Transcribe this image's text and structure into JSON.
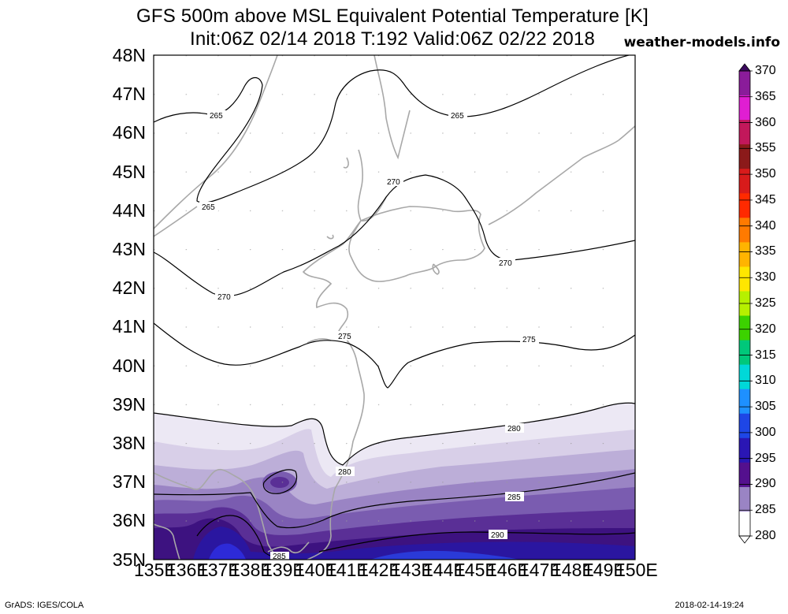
{
  "header": {
    "title_line1": "GFS 500m above MSL Equivalent Potential Temperature [K]",
    "title_line2": "Init:06Z 02/14 2018 T:192 Valid:06Z 02/22 2018",
    "site": "weather-models.info"
  },
  "axes": {
    "lat_labels": [
      "48N",
      "47N",
      "46N",
      "45N",
      "44N",
      "43N",
      "42N",
      "41N",
      "40N",
      "39N",
      "38N",
      "37N",
      "36N",
      "35N"
    ],
    "lon_labels": [
      "135E",
      "136E",
      "137E",
      "138E",
      "139E",
      "140E",
      "141E",
      "142E",
      "143E",
      "144E",
      "145E",
      "146E",
      "147E",
      "148E",
      "149E",
      "150E"
    ]
  },
  "colorbar": {
    "labels": [
      "370",
      "365",
      "360",
      "355",
      "350",
      "345",
      "340",
      "335",
      "330",
      "325",
      "320",
      "315",
      "310",
      "305",
      "300",
      "295",
      "290",
      "285",
      "280"
    ],
    "colors": [
      "#3b0a5e",
      "#8a1c9a",
      "#e01ed2",
      "#c2185b",
      "#8b1a1a",
      "#d81b1b",
      "#ff2a00",
      "#ff7a00",
      "#ffb400",
      "#ffe600",
      "#b6f000",
      "#3cd200",
      "#00c87a",
      "#00d8d8",
      "#1e90ff",
      "#1e46e6",
      "#2a16b4",
      "#54108e",
      "#9a84c4",
      "#ffffff"
    ]
  },
  "contour_labels": {
    "c265": "265",
    "c270": "270",
    "c275": "275",
    "c280": "280",
    "c285": "285",
    "c290": "290"
  },
  "footer": {
    "left": "GrADS: IGES/COLA",
    "right": "2018-02-14-19:24"
  }
}
